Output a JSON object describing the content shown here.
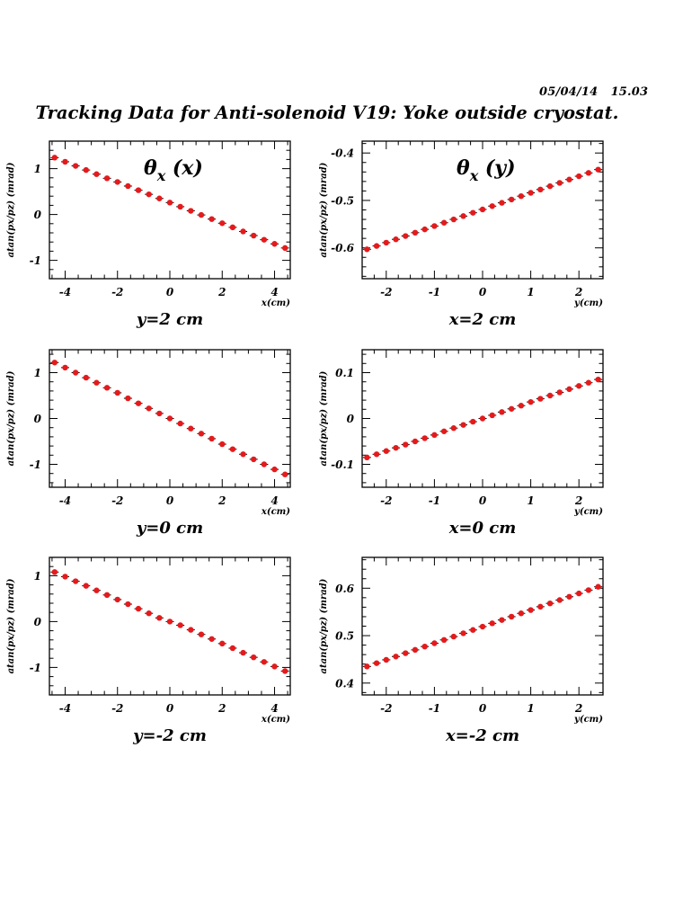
{
  "header": {
    "date": "05/04/14",
    "time": "15.03",
    "title": "Tracking Data for Anti-solenoid V19: Yoke outside cryostat."
  },
  "colors": {
    "marker": "#e41a1c",
    "axis": "#000000",
    "background": "#ffffff"
  },
  "chart_data": [
    {
      "type": "scatter",
      "title": "θx (x)",
      "title_main": "θ",
      "title_sub": "x",
      "title_arg": "(x)",
      "subtitle": "y=2 cm",
      "xlabel": "x(cm)",
      "ylabel": "atan(px/pz) (mrad)",
      "xlim": [
        -4.6,
        4.6
      ],
      "ylim": [
        -1.4,
        1.6
      ],
      "xticks": [
        -4,
        -2,
        0,
        2,
        4
      ],
      "yticks": [
        -1,
        0,
        1
      ],
      "ytick_labels": [
        "-1",
        "0",
        "1"
      ],
      "grid": false,
      "series": [
        {
          "x": [
            -4.4,
            -4.0,
            -3.6,
            -3.2,
            -2.8,
            -2.4,
            -2.0,
            -1.6,
            -1.2,
            -0.8,
            -0.4,
            0.0,
            0.4,
            0.8,
            1.2,
            1.6,
            2.0,
            2.4,
            2.8,
            3.2,
            3.6,
            4.0,
            4.4
          ],
          "y": [
            1.24,
            1.15,
            1.06,
            0.97,
            0.88,
            0.79,
            0.71,
            0.62,
            0.53,
            0.44,
            0.35,
            0.26,
            0.17,
            0.08,
            -0.01,
            -0.1,
            -0.19,
            -0.28,
            -0.37,
            -0.46,
            -0.55,
            -0.64,
            -0.73
          ]
        }
      ]
    },
    {
      "type": "scatter",
      "title": "θx (y)",
      "title_main": "θ",
      "title_sub": "x",
      "title_arg": "(y)",
      "subtitle": "x=2 cm",
      "xlabel": "y(cm)",
      "ylabel": "atan(px/pz) (mrad)",
      "xlim": [
        -2.5,
        2.5
      ],
      "ylim": [
        -0.665,
        -0.375
      ],
      "xticks": [
        -2,
        -1,
        0,
        1,
        2
      ],
      "yticks": [
        -0.6,
        -0.5,
        -0.4
      ],
      "ytick_labels": [
        "-0.6",
        "-0.5",
        "-0.4"
      ],
      "grid": false,
      "series": [
        {
          "x": [
            -2.4,
            -2.2,
            -2.0,
            -1.8,
            -1.6,
            -1.4,
            -1.2,
            -1.0,
            -0.8,
            -0.6,
            -0.4,
            -0.2,
            0.0,
            0.2,
            0.4,
            0.6,
            0.8,
            1.0,
            1.2,
            1.4,
            1.6,
            1.8,
            2.0,
            2.2,
            2.4
          ],
          "y": [
            -0.603,
            -0.596,
            -0.589,
            -0.582,
            -0.575,
            -0.568,
            -0.561,
            -0.554,
            -0.547,
            -0.54,
            -0.533,
            -0.526,
            -0.519,
            -0.512,
            -0.505,
            -0.498,
            -0.491,
            -0.484,
            -0.477,
            -0.47,
            -0.463,
            -0.456,
            -0.449,
            -0.442,
            -0.435
          ]
        }
      ]
    },
    {
      "type": "scatter",
      "subtitle": "y=0 cm",
      "xlabel": "x(cm)",
      "ylabel": "atan(px/pz) (mrad)",
      "xlim": [
        -4.6,
        4.6
      ],
      "ylim": [
        -1.5,
        1.5
      ],
      "xticks": [
        -4,
        -2,
        0,
        2,
        4
      ],
      "yticks": [
        -1,
        0,
        1
      ],
      "ytick_labels": [
        "-1",
        "0",
        "1"
      ],
      "grid": false,
      "series": [
        {
          "x": [
            -4.4,
            -4.0,
            -3.6,
            -3.2,
            -2.8,
            -2.4,
            -2.0,
            -1.6,
            -1.2,
            -0.8,
            -0.4,
            0.0,
            0.4,
            0.8,
            1.2,
            1.6,
            2.0,
            2.4,
            2.8,
            3.2,
            3.6,
            4.0,
            4.4
          ],
          "y": [
            1.22,
            1.11,
            1.0,
            0.89,
            0.78,
            0.67,
            0.56,
            0.44,
            0.33,
            0.22,
            0.11,
            0.0,
            -0.11,
            -0.22,
            -0.33,
            -0.44,
            -0.56,
            -0.67,
            -0.78,
            -0.89,
            -1.0,
            -1.11,
            -1.22
          ]
        }
      ]
    },
    {
      "type": "scatter",
      "subtitle": "x=0 cm",
      "xlabel": "y(cm)",
      "ylabel": "atan(px/pz) (mrad)",
      "xlim": [
        -2.5,
        2.5
      ],
      "ylim": [
        -0.15,
        0.15
      ],
      "xticks": [
        -2,
        -1,
        0,
        1,
        2
      ],
      "yticks": [
        -0.1,
        0,
        0.1
      ],
      "ytick_labels": [
        "-0.1",
        "0",
        "0.1"
      ],
      "grid": false,
      "series": [
        {
          "x": [
            -2.4,
            -2.2,
            -2.0,
            -1.8,
            -1.6,
            -1.4,
            -1.2,
            -1.0,
            -0.8,
            -0.6,
            -0.4,
            -0.2,
            0.0,
            0.2,
            0.4,
            0.6,
            0.8,
            1.0,
            1.2,
            1.4,
            1.6,
            1.8,
            2.0,
            2.2,
            2.4
          ],
          "y": [
            -0.085,
            -0.078,
            -0.071,
            -0.064,
            -0.057,
            -0.05,
            -0.043,
            -0.036,
            -0.028,
            -0.021,
            -0.014,
            -0.007,
            0.0,
            0.007,
            0.014,
            0.021,
            0.028,
            0.036,
            0.043,
            0.05,
            0.057,
            0.064,
            0.071,
            0.078,
            0.085
          ]
        }
      ]
    },
    {
      "type": "scatter",
      "subtitle": "y=-2 cm",
      "xlabel": "x(cm)",
      "ylabel": "atan(px/pz) (mrad)",
      "xlim": [
        -4.6,
        4.6
      ],
      "ylim": [
        -1.6,
        1.4
      ],
      "xticks": [
        -4,
        -2,
        0,
        2,
        4
      ],
      "yticks": [
        -1,
        0,
        1
      ],
      "ytick_labels": [
        "-1",
        "0",
        "1"
      ],
      "grid": false,
      "series": [
        {
          "x": [
            -4.4,
            -4.0,
            -3.6,
            -3.2,
            -2.8,
            -2.4,
            -2.0,
            -1.6,
            -1.2,
            -0.8,
            -0.4,
            0.0,
            0.4,
            0.8,
            1.2,
            1.6,
            2.0,
            2.4,
            2.8,
            3.2,
            3.6,
            4.0,
            4.4
          ],
          "y": [
            1.08,
            0.98,
            0.88,
            0.78,
            0.68,
            0.58,
            0.48,
            0.38,
            0.28,
            0.18,
            0.08,
            0.0,
            -0.08,
            -0.18,
            -0.28,
            -0.38,
            -0.48,
            -0.58,
            -0.68,
            -0.78,
            -0.88,
            -0.98,
            -1.08
          ]
        }
      ]
    },
    {
      "type": "scatter",
      "subtitle": "x=-2 cm",
      "xlabel": "y(cm)",
      "ylabel": "atan(px/pz) (mrad)",
      "xlim": [
        -2.5,
        2.5
      ],
      "ylim": [
        0.375,
        0.665
      ],
      "xticks": [
        -2,
        -1,
        0,
        1,
        2
      ],
      "yticks": [
        0.4,
        0.5,
        0.6
      ],
      "ytick_labels": [
        "0.4",
        "0.5",
        "0.6"
      ],
      "grid": false,
      "series": [
        {
          "x": [
            -2.4,
            -2.2,
            -2.0,
            -1.8,
            -1.6,
            -1.4,
            -1.2,
            -1.0,
            -0.8,
            -0.6,
            -0.4,
            -0.2,
            0.0,
            0.2,
            0.4,
            0.6,
            0.8,
            1.0,
            1.2,
            1.4,
            1.6,
            1.8,
            2.0,
            2.2,
            2.4
          ],
          "y": [
            0.435,
            0.442,
            0.449,
            0.456,
            0.463,
            0.47,
            0.477,
            0.484,
            0.491,
            0.498,
            0.505,
            0.512,
            0.519,
            0.526,
            0.533,
            0.54,
            0.547,
            0.554,
            0.561,
            0.568,
            0.575,
            0.582,
            0.589,
            0.596,
            0.603
          ]
        }
      ]
    }
  ]
}
